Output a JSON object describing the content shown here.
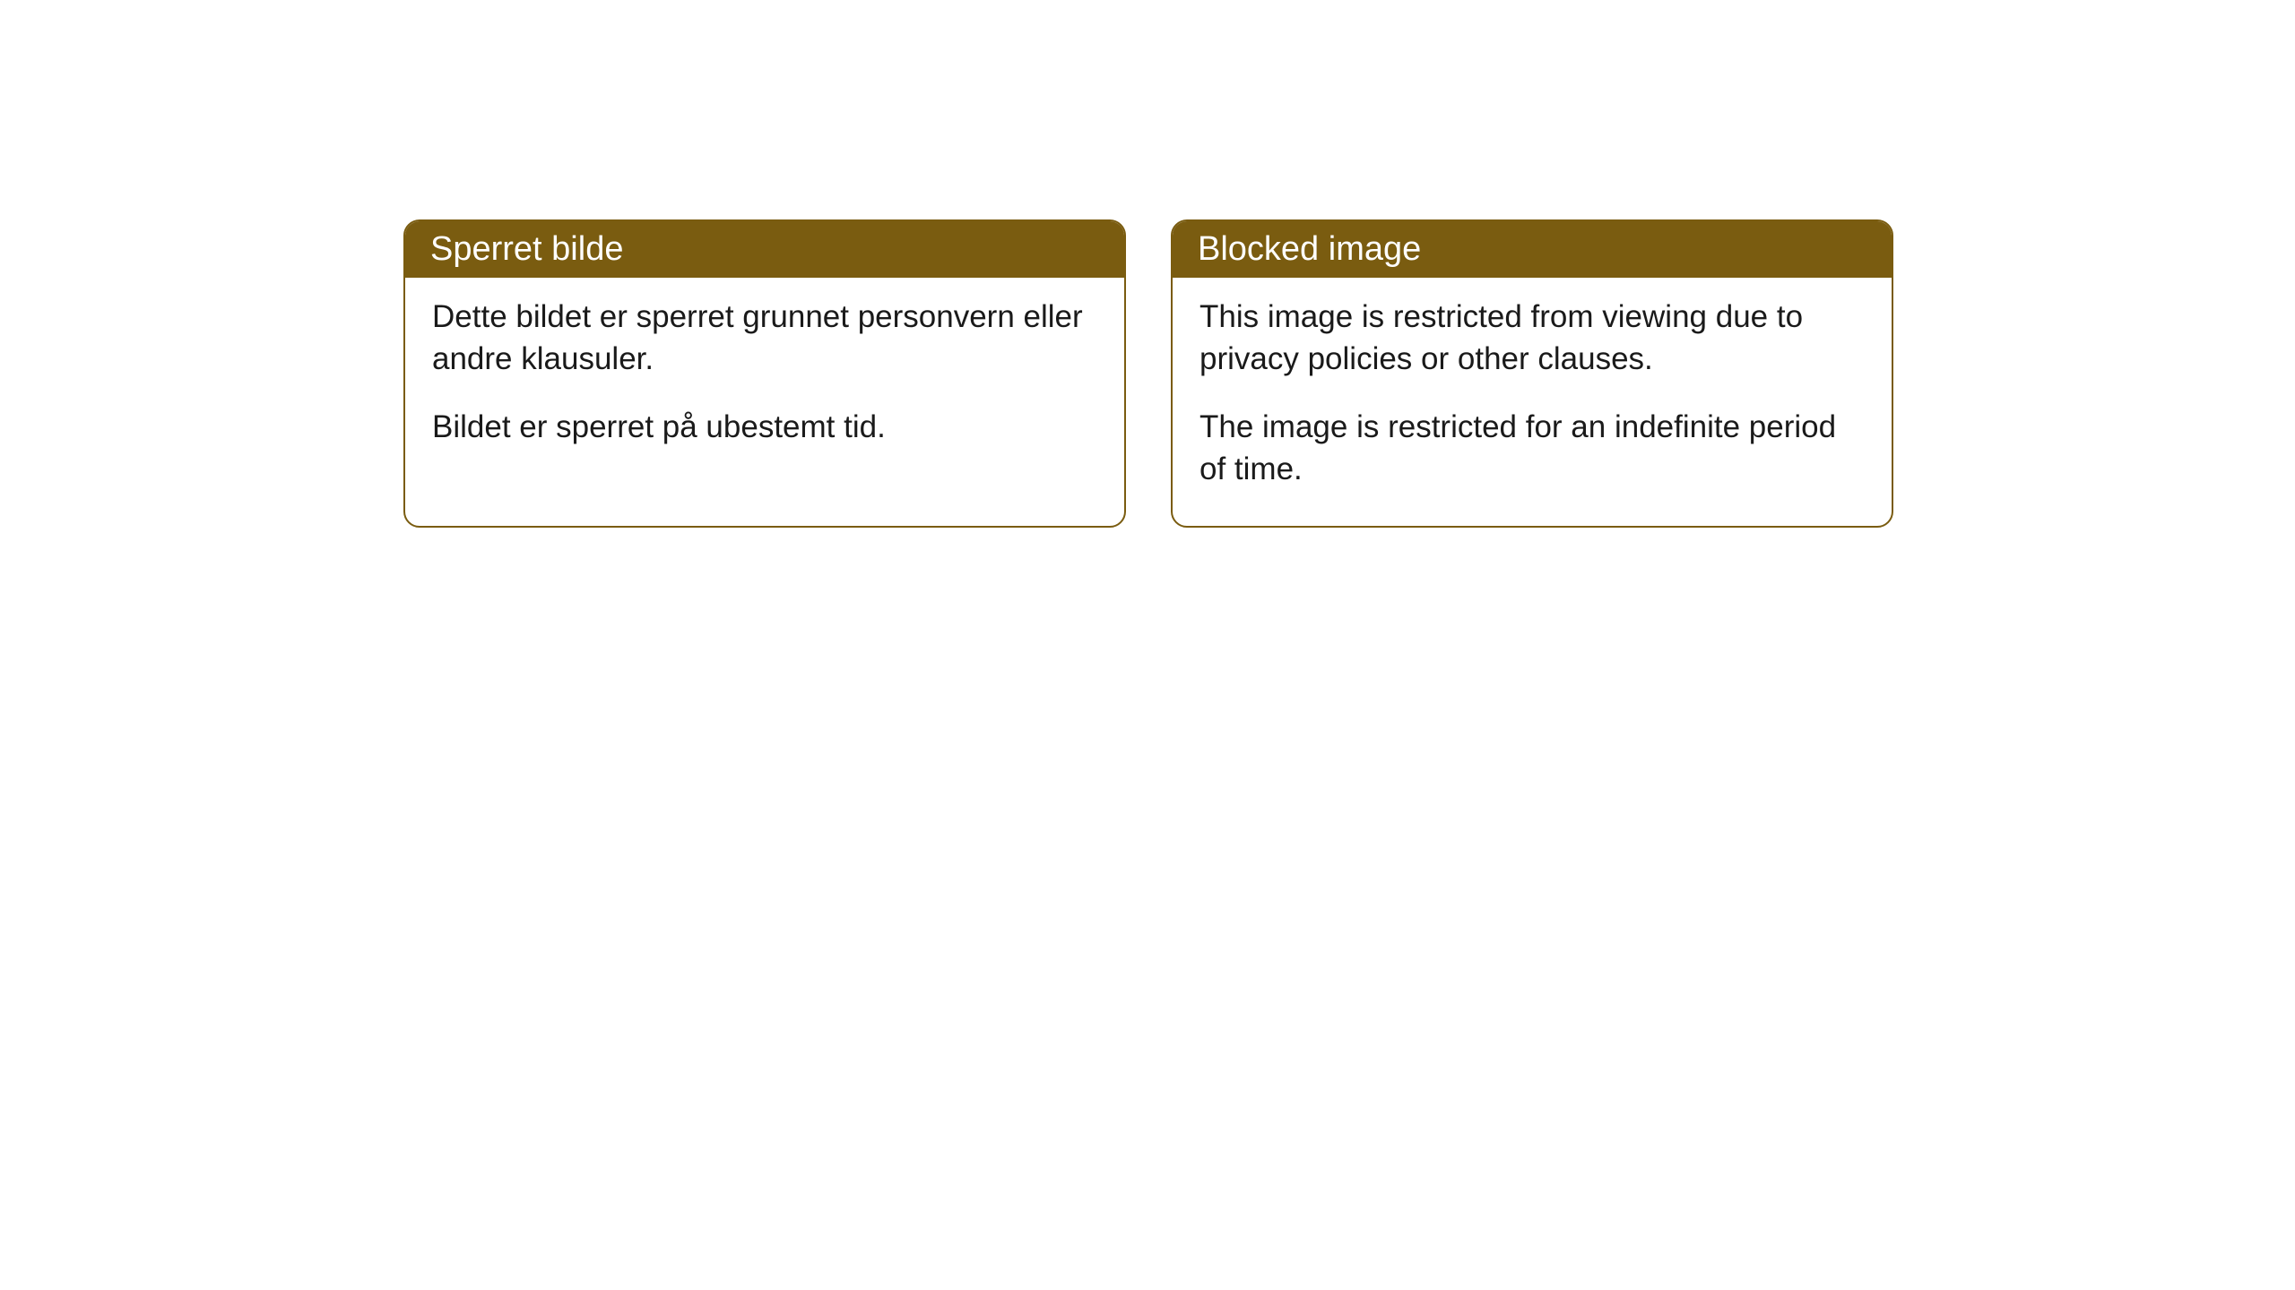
{
  "cards": [
    {
      "title": "Sperret bilde",
      "paragraph1": "Dette bildet er sperret grunnet personvern eller andre klausuler.",
      "paragraph2": "Bildet er sperret på ubestemt tid."
    },
    {
      "title": "Blocked image",
      "paragraph1": "This image is restricted from viewing due to privacy policies or other clauses.",
      "paragraph2": "The image is restricted for an indefinite period of time."
    }
  ],
  "style": {
    "header_bg_color": "#7a5c10",
    "header_text_color": "#ffffff",
    "border_color": "#7a5c10",
    "body_bg_color": "#ffffff",
    "body_text_color": "#1a1a1a",
    "border_radius": 18,
    "title_fontsize": 38,
    "body_fontsize": 35
  }
}
